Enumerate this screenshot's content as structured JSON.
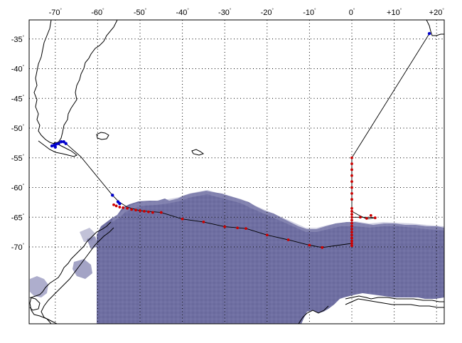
{
  "map": {
    "projection": "lon-lat",
    "lon_range": [
      -76,
      22
    ],
    "lat_range": [
      -32.5,
      -74
    ],
    "lon_ticks": [
      {
        "value": -70,
        "label": "-70"
      },
      {
        "value": -60,
        "label": "-60"
      },
      {
        "value": -50,
        "label": "-50"
      },
      {
        "value": -40,
        "label": "-40"
      },
      {
        "value": -30,
        "label": "-30"
      },
      {
        "value": -20,
        "label": "-20"
      },
      {
        "value": -10,
        "label": "-10"
      },
      {
        "value": 0,
        "label": "0"
      },
      {
        "value": 10,
        "label": "+10"
      },
      {
        "value": 20,
        "label": "+20"
      }
    ],
    "lat_ticks": [
      {
        "value": -35,
        "label": "-35"
      },
      {
        "value": -40,
        "label": "-40"
      },
      {
        "value": -45,
        "label": "-45"
      },
      {
        "value": -50,
        "label": "-50"
      },
      {
        "value": -55,
        "label": "-55"
      },
      {
        "value": -60,
        "label": "-60"
      },
      {
        "value": -65,
        "label": "-65"
      },
      {
        "value": -70,
        "label": "-70"
      }
    ],
    "degree_symbol": "°",
    "colors": {
      "sea_ice": "#6a6a9e",
      "sea_ice_light": "#8e8eb6",
      "track": "#000000",
      "stations_red": "#cc0000",
      "stations_blue": "#0000cc",
      "coast": "#000000",
      "grid": "#000000"
    },
    "cruise_track": [
      [
        -70.5,
        -52.6
      ],
      [
        -68.5,
        -52.2
      ],
      [
        -67.5,
        -52.6
      ],
      [
        -64,
        -54.8
      ],
      [
        -56.5,
        -61.3
      ],
      [
        -55,
        -62.4
      ],
      [
        -53,
        -63.3
      ],
      [
        -50,
        -63.9
      ],
      [
        -45,
        -64.2
      ],
      [
        -40,
        -65.3
      ],
      [
        -35,
        -65.8
      ],
      [
        -30,
        -66.6
      ],
      [
        -25,
        -66.9
      ],
      [
        -20,
        -68.0
      ],
      [
        -15,
        -68.8
      ],
      [
        -10,
        -69.7
      ],
      [
        -7,
        -70.1
      ],
      [
        -3,
        -69.7
      ],
      [
        0,
        -69.4
      ],
      [
        0,
        -69.0
      ],
      [
        0,
        -67.0
      ],
      [
        0,
        -65.0
      ],
      [
        4,
        -65.0
      ],
      [
        5.5,
        -65.1
      ],
      [
        3.5,
        -65.3
      ],
      [
        1.5,
        -64.6
      ],
      [
        0,
        -64.0
      ],
      [
        0,
        -62.0
      ],
      [
        0,
        -60.0
      ],
      [
        0,
        -58.0
      ],
      [
        0,
        -55.0
      ],
      [
        18.3,
        -34.1
      ]
    ],
    "stations_red": [
      [
        -56.2,
        -62.9
      ],
      [
        -55.6,
        -63.1
      ],
      [
        -54.8,
        -63.3
      ],
      [
        -54,
        -63.4
      ],
      [
        -53,
        -63.5
      ],
      [
        -52,
        -63.7
      ],
      [
        -51,
        -63.8
      ],
      [
        -50,
        -63.9
      ],
      [
        -49,
        -64.0
      ],
      [
        -48,
        -64.1
      ],
      [
        -47,
        -64.2
      ],
      [
        -45,
        -64.2
      ],
      [
        -40,
        -65.3
      ],
      [
        -35,
        -65.8
      ],
      [
        -30,
        -66.6
      ],
      [
        -27,
        -66.8
      ],
      [
        -25,
        -66.9
      ],
      [
        -20,
        -68.0
      ],
      [
        -15,
        -68.8
      ],
      [
        -10,
        -69.7
      ],
      [
        -7,
        -70.1
      ],
      [
        0,
        -69.8
      ],
      [
        0,
        -69.4
      ],
      [
        0,
        -69.0
      ],
      [
        0,
        -68.5
      ],
      [
        0,
        -68.0
      ],
      [
        0,
        -67.5
      ],
      [
        0,
        -67.0
      ],
      [
        0,
        -66.5
      ],
      [
        0,
        -66.0
      ],
      [
        0,
        -65.5
      ],
      [
        0,
        -65.0
      ],
      [
        0,
        -64.5
      ],
      [
        0,
        -64.0
      ],
      [
        0,
        -63.5
      ],
      [
        0,
        -62.0
      ],
      [
        0,
        -61.0
      ],
      [
        0,
        -60.0
      ],
      [
        0,
        -59.0
      ],
      [
        0,
        -58.0
      ],
      [
        0,
        -57.0
      ],
      [
        0,
        -56.0
      ],
      [
        0,
        -55.0
      ],
      [
        2,
        -65.0
      ],
      [
        3.5,
        -65.2
      ],
      [
        5.5,
        -65.1
      ],
      [
        4.5,
        -64.7
      ]
    ],
    "stations_blue": [
      [
        -70.8,
        -53.0
      ],
      [
        -70.3,
        -52.9
      ],
      [
        -69.8,
        -52.7
      ],
      [
        -69.2,
        -52.6
      ],
      [
        -68.6,
        -52.3
      ],
      [
        -68.0,
        -52.3
      ],
      [
        -67.5,
        -52.6
      ],
      [
        -70.0,
        -53.2
      ],
      [
        -56.5,
        -61.3
      ],
      [
        -55.2,
        -62.4
      ],
      [
        -54.8,
        -62.7
      ],
      [
        18.3,
        -34.1
      ]
    ]
  }
}
